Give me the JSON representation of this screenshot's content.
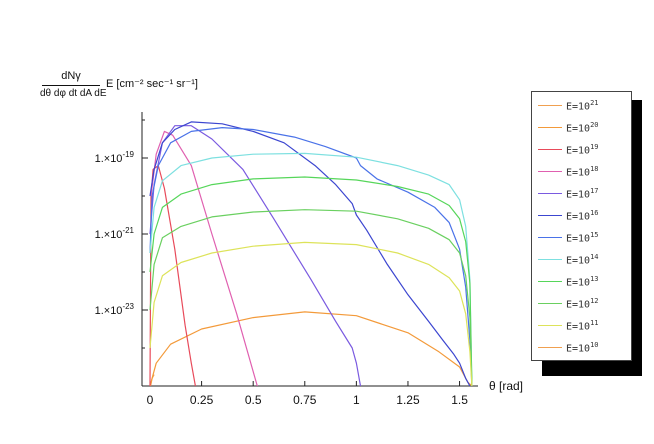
{
  "chart_data": {
    "type": "line",
    "ylabel": {
      "numerator": "dNγ",
      "denominator": "dθ dφ dt dA dE",
      "suffix": "E [cm⁻² sec⁻¹ sr⁻¹]"
    },
    "xlabel": "θ [rad]",
    "xlim": [
      0,
      1.57
    ],
    "ylim": [
      -25,
      -18
    ],
    "yscale": "log",
    "xticks": [
      "0",
      "0.25",
      "0.5",
      "0.75",
      "1",
      "1.25",
      "1.5"
    ],
    "yticks": [
      {
        "log": -19,
        "label": "1.×10",
        "exp": "-19"
      },
      {
        "log": -21,
        "label": "1.×10",
        "exp": "-21"
      },
      {
        "log": -23,
        "label": "1.×10",
        "exp": "-23"
      }
    ],
    "legend_position": "right",
    "series": [
      {
        "name": "E=10^21",
        "base": "E=10",
        "exp": "21",
        "color": "#f0a050",
        "points": [
          [
            0.003,
            -25
          ],
          [
            0.01,
            -24.8
          ],
          [
            0.02,
            -24.7
          ]
        ]
      },
      {
        "name": "E=10^20",
        "base": "E=10",
        "exp": "20",
        "color": "#f39a3a",
        "points": [
          [
            0,
            -25
          ],
          [
            0.03,
            -24.4
          ],
          [
            0.1,
            -23.9
          ],
          [
            0.25,
            -23.5
          ],
          [
            0.5,
            -23.2
          ],
          [
            0.75,
            -23.05
          ],
          [
            1.0,
            -23.15
          ],
          [
            1.25,
            -23.6
          ],
          [
            1.4,
            -24.1
          ],
          [
            1.5,
            -24.5
          ],
          [
            1.54,
            -24.9
          ],
          [
            1.56,
            -25
          ]
        ]
      },
      {
        "name": "E=10^19",
        "base": "E=10",
        "exp": "19",
        "color": "#e84a5a",
        "points": [
          [
            0,
            -25
          ],
          [
            0.005,
            -20
          ],
          [
            0.015,
            -19.3
          ],
          [
            0.04,
            -19.2
          ],
          [
            0.07,
            -19.8
          ],
          [
            0.12,
            -21.4
          ],
          [
            0.17,
            -23.4
          ],
          [
            0.2,
            -24.4
          ],
          [
            0.22,
            -25
          ]
        ]
      },
      {
        "name": "E=10^18",
        "base": "E=10",
        "exp": "18",
        "color": "#e060b0",
        "points": [
          [
            0.005,
            -20
          ],
          [
            0.03,
            -18.9
          ],
          [
            0.07,
            -18.3
          ],
          [
            0.11,
            -18.4
          ],
          [
            0.2,
            -19.2
          ],
          [
            0.3,
            -21
          ],
          [
            0.42,
            -23.1
          ],
          [
            0.52,
            -25
          ]
        ]
      },
      {
        "name": "E=10^17",
        "base": "E=10",
        "exp": "17",
        "color": "#7a5ae0",
        "points": [
          [
            0,
            -21
          ],
          [
            0.02,
            -19.7
          ],
          [
            0.06,
            -18.6
          ],
          [
            0.12,
            -18.15
          ],
          [
            0.2,
            -18.15
          ],
          [
            0.3,
            -18.5
          ],
          [
            0.45,
            -19.3
          ],
          [
            0.6,
            -20.6
          ],
          [
            0.78,
            -22.2
          ],
          [
            0.9,
            -23.3
          ],
          [
            0.98,
            -24
          ],
          [
            1.0,
            -24.4
          ],
          [
            1.02,
            -25
          ]
        ]
      },
      {
        "name": "E=10^16",
        "base": "E=10",
        "exp": "16",
        "color": "#3c46d0",
        "points": [
          [
            0,
            -20
          ],
          [
            0.02,
            -19.3
          ],
          [
            0.06,
            -18.6
          ],
          [
            0.12,
            -18.25
          ],
          [
            0.2,
            -18.05
          ],
          [
            0.35,
            -18.1
          ],
          [
            0.5,
            -18.3
          ],
          [
            0.65,
            -18.6
          ],
          [
            0.8,
            -19.2
          ],
          [
            0.9,
            -19.7
          ],
          [
            0.98,
            -20.2
          ],
          [
            1.0,
            -20.5
          ],
          [
            1.05,
            -20.9
          ],
          [
            1.15,
            -21.8
          ],
          [
            1.25,
            -22.6
          ],
          [
            1.35,
            -23.3
          ],
          [
            1.42,
            -23.8
          ],
          [
            1.47,
            -24.15
          ],
          [
            1.5,
            -24.4
          ],
          [
            1.53,
            -24.8
          ],
          [
            1.55,
            -25
          ]
        ]
      },
      {
        "name": "E=10^15",
        "base": "E=10",
        "exp": "15",
        "color": "#4a72e8",
        "points": [
          [
            0,
            -21.5
          ],
          [
            0.01,
            -20
          ],
          [
            0.04,
            -19.2
          ],
          [
            0.1,
            -18.6
          ],
          [
            0.2,
            -18.3
          ],
          [
            0.35,
            -18.2
          ],
          [
            0.5,
            -18.25
          ],
          [
            0.7,
            -18.45
          ],
          [
            0.85,
            -18.7
          ],
          [
            1.0,
            -19
          ],
          [
            1.02,
            -19.2
          ],
          [
            1.1,
            -19.55
          ],
          [
            1.25,
            -19.9
          ],
          [
            1.38,
            -20.3
          ],
          [
            1.45,
            -20.7
          ],
          [
            1.5,
            -21.4
          ],
          [
            1.53,
            -22.4
          ],
          [
            1.55,
            -23.8
          ],
          [
            1.56,
            -25
          ]
        ]
      },
      {
        "name": "E=10^14",
        "base": "E=10",
        "exp": "14",
        "color": "#7de0e0",
        "points": [
          [
            0,
            -21.5
          ],
          [
            0.02,
            -20.3
          ],
          [
            0.06,
            -19.6
          ],
          [
            0.15,
            -19.2
          ],
          [
            0.3,
            -19
          ],
          [
            0.5,
            -18.9
          ],
          [
            0.75,
            -18.88
          ],
          [
            1.0,
            -18.98
          ],
          [
            1.2,
            -19.2
          ],
          [
            1.35,
            -19.45
          ],
          [
            1.45,
            -19.7
          ],
          [
            1.5,
            -20.1
          ],
          [
            1.53,
            -20.8
          ],
          [
            1.55,
            -22.2
          ],
          [
            1.56,
            -25
          ]
        ]
      },
      {
        "name": "E=10^13",
        "base": "E=10",
        "exp": "13",
        "color": "#56d65a",
        "points": [
          [
            0,
            -22
          ],
          [
            0.02,
            -21
          ],
          [
            0.06,
            -20.3
          ],
          [
            0.15,
            -19.95
          ],
          [
            0.3,
            -19.7
          ],
          [
            0.5,
            -19.55
          ],
          [
            0.75,
            -19.5
          ],
          [
            1.0,
            -19.58
          ],
          [
            1.2,
            -19.75
          ],
          [
            1.35,
            -19.95
          ],
          [
            1.45,
            -20.25
          ],
          [
            1.5,
            -20.6
          ],
          [
            1.53,
            -21.2
          ],
          [
            1.55,
            -22.3
          ],
          [
            1.56,
            -25
          ]
        ]
      },
      {
        "name": "E=10^12",
        "base": "E=10",
        "exp": "12",
        "color": "#6ad060",
        "points": [
          [
            0,
            -23
          ],
          [
            0.02,
            -21.8
          ],
          [
            0.06,
            -21.1
          ],
          [
            0.15,
            -20.8
          ],
          [
            0.3,
            -20.55
          ],
          [
            0.5,
            -20.42
          ],
          [
            0.75,
            -20.36
          ],
          [
            1.0,
            -20.4
          ],
          [
            1.2,
            -20.6
          ],
          [
            1.35,
            -20.85
          ],
          [
            1.45,
            -21.15
          ],
          [
            1.5,
            -21.5
          ],
          [
            1.53,
            -22.1
          ],
          [
            1.55,
            -23.2
          ],
          [
            1.56,
            -25
          ]
        ]
      },
      {
        "name": "E=10^11",
        "base": "E=10",
        "exp": "11",
        "color": "#dde35a",
        "points": [
          [
            0,
            -24
          ],
          [
            0.02,
            -22.8
          ],
          [
            0.06,
            -22.1
          ],
          [
            0.15,
            -21.75
          ],
          [
            0.3,
            -21.5
          ],
          [
            0.5,
            -21.32
          ],
          [
            0.75,
            -21.22
          ],
          [
            1.0,
            -21.28
          ],
          [
            1.2,
            -21.5
          ],
          [
            1.35,
            -21.8
          ],
          [
            1.45,
            -22.15
          ],
          [
            1.5,
            -22.5
          ],
          [
            1.53,
            -23.1
          ],
          [
            1.55,
            -24.1
          ],
          [
            1.56,
            -25
          ]
        ]
      },
      {
        "name": "E=10^10",
        "base": "E=10",
        "exp": "10",
        "color": "#f0a050",
        "points": [
          [
            0,
            -25
          ]
        ]
      }
    ]
  }
}
